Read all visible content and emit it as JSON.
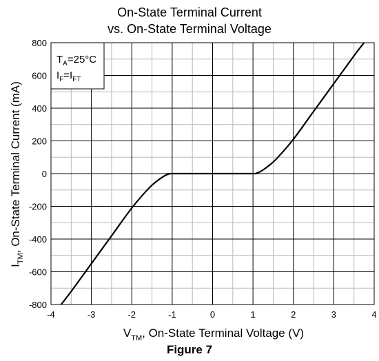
{
  "chart_data": {
    "type": "line",
    "title_line1": "On-State Terminal Current",
    "title_line2": "vs. On-State Terminal Voltage",
    "xlabel": {
      "main": "V",
      "sub": "TM",
      "rest": ", On-State Terminal Voltage (V)"
    },
    "ylabel": {
      "main": "I",
      "sub": "TM",
      "rest": ", On-State Terminal Current (mA)"
    },
    "xlim": [
      -4,
      4
    ],
    "ylim": [
      -800,
      800
    ],
    "x_ticks": [
      "-4",
      "-3",
      "-2",
      "-1",
      "0",
      "1",
      "2",
      "3",
      "4"
    ],
    "y_ticks": [
      "800",
      "600",
      "400",
      "200",
      "0",
      "-200",
      "-400",
      "-600",
      "-800"
    ],
    "grid": true,
    "legend_box": {
      "line1": {
        "main": "T",
        "sub": "A",
        "rest": "=25°C"
      },
      "line2": {
        "main": "I",
        "sub": "F",
        "mid": "=I",
        "sub2": "FT"
      }
    },
    "series": [
      {
        "x": [
          -3.75,
          -3.5,
          -3.0,
          -2.5,
          -2.0,
          -1.6,
          -1.4,
          -1.2,
          -1.1,
          -1.0,
          0.0,
          1.0,
          1.1,
          1.2,
          1.4,
          1.6,
          2.0,
          2.5,
          3.0,
          3.5,
          3.75
        ],
        "y": [
          -800,
          -720,
          -550,
          -380,
          -210,
          -95,
          -50,
          -15,
          -4,
          0,
          0,
          0,
          4,
          15,
          50,
          95,
          210,
          380,
          550,
          720,
          800
        ]
      }
    ],
    "caption": "Figure 7"
  }
}
